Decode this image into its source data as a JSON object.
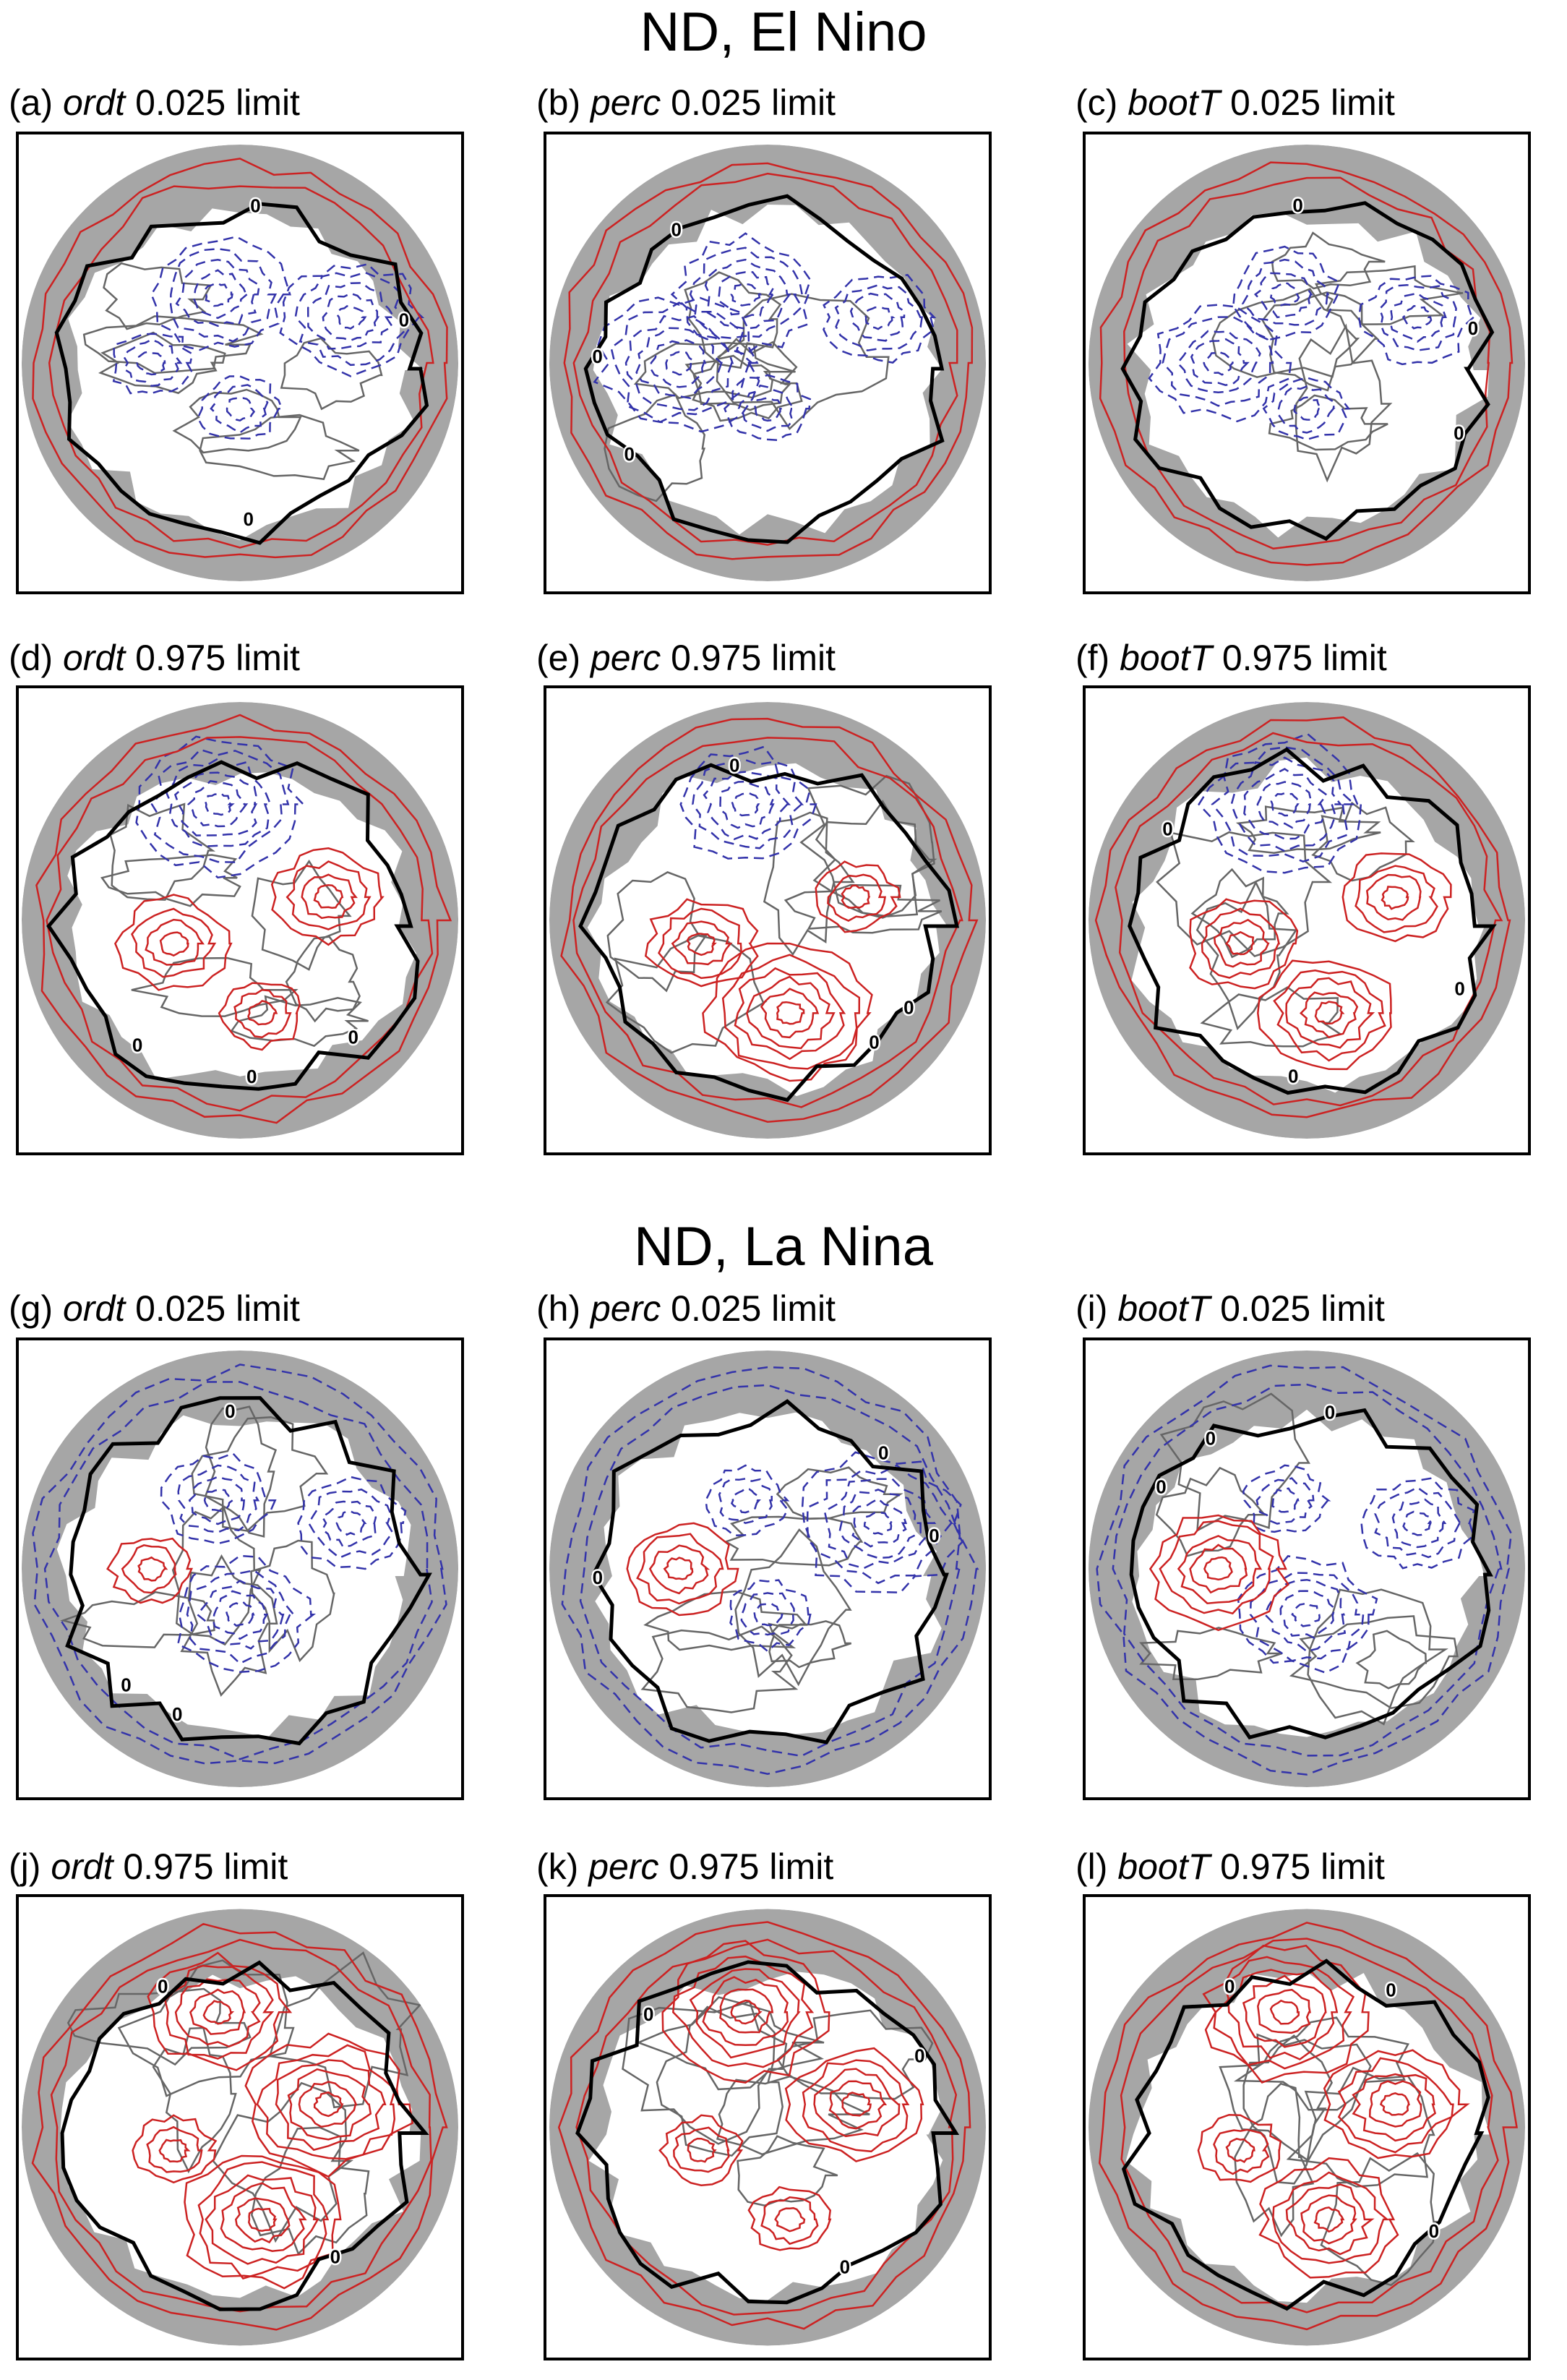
{
  "sections": [
    {
      "title": "ND, El Nino"
    },
    {
      "title": "ND, La Nina"
    }
  ],
  "panels": [
    {
      "letter": "(a)",
      "method": "ordt",
      "suffix": "0.025 limit",
      "limit": "lower",
      "event": "elnino"
    },
    {
      "letter": "(b)",
      "method": "perc",
      "suffix": "0.025 limit",
      "limit": "lower",
      "event": "elnino"
    },
    {
      "letter": "(c)",
      "method": "bootT",
      "suffix": "0.025 limit",
      "limit": "lower",
      "event": "elnino"
    },
    {
      "letter": "(d)",
      "method": "ordt",
      "suffix": "0.975 limit",
      "limit": "upper",
      "event": "elnino"
    },
    {
      "letter": "(e)",
      "method": "perc",
      "suffix": "0.975 limit",
      "limit": "upper",
      "event": "elnino"
    },
    {
      "letter": "(f)",
      "method": "bootT",
      "suffix": "0.975 limit",
      "limit": "upper",
      "event": "elnino"
    },
    {
      "letter": "(g)",
      "method": "ordt",
      "suffix": "0.025 limit",
      "limit": "lower",
      "event": "lanina"
    },
    {
      "letter": "(h)",
      "method": "perc",
      "suffix": "0.025 limit",
      "limit": "lower",
      "event": "lanina"
    },
    {
      "letter": "(i)",
      "method": "bootT",
      "suffix": "0.025 limit",
      "limit": "lower",
      "event": "lanina"
    },
    {
      "letter": "(j)",
      "method": "ordt",
      "suffix": "0.975 limit",
      "limit": "upper",
      "event": "lanina"
    },
    {
      "letter": "(k)",
      "method": "perc",
      "suffix": "0.975 limit",
      "limit": "upper",
      "event": "lanina"
    },
    {
      "letter": "(l)",
      "method": "bootT",
      "suffix": "0.975 limit",
      "limit": "upper",
      "event": "lanina"
    }
  ],
  "contour_label": "0",
  "colors": {
    "positive_contour": "#cc2222",
    "negative_contour": "#3333aa",
    "zero_contour": "#000000",
    "shading": "#a6a6a6",
    "coastline": "#666666"
  }
}
